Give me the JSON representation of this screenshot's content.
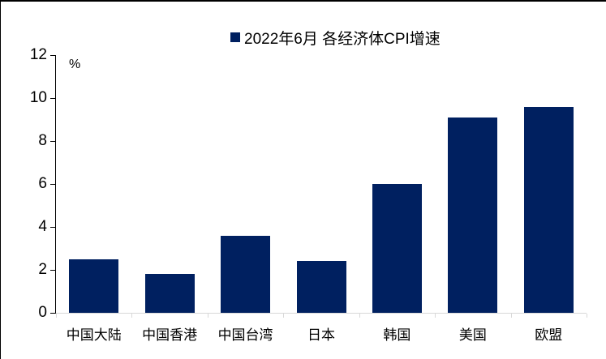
{
  "chart_data": {
    "type": "bar",
    "title": "2022年6月 各经济体CPI增速",
    "unit_label": "%",
    "categories": [
      "中国大陆",
      "中国香港",
      "中国台湾",
      "日本",
      "韩国",
      "美国",
      "欧盟"
    ],
    "values": [
      2.5,
      1.8,
      3.6,
      2.4,
      6.0,
      9.1,
      9.6
    ],
    "ylim": [
      0,
      12
    ],
    "yticks": [
      0,
      2,
      4,
      6,
      8,
      10,
      12
    ],
    "grid": "off",
    "legend_position": "top-center",
    "bar_color": "#002060",
    "legend_marker_color": "#002060",
    "y_axis_color": "#000000",
    "x_axis_color": "#d9d9d9",
    "text_color": "#000000"
  }
}
